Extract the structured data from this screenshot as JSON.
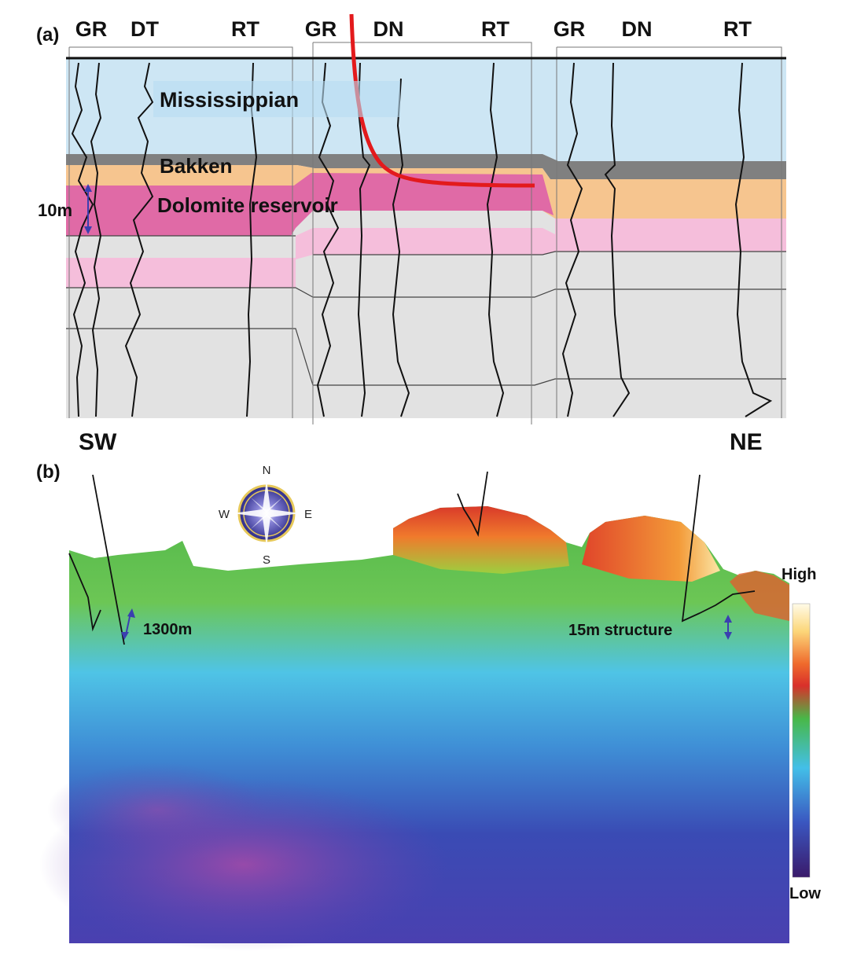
{
  "panel_a": {
    "label": "(a)",
    "tracks": [
      {
        "name": "GR"
      },
      {
        "name": "DT"
      },
      {
        "name": "RT"
      },
      {
        "name": "GR"
      },
      {
        "name": "DN"
      },
      {
        "name": "RT"
      },
      {
        "name": "GR"
      },
      {
        "name": "DN"
      },
      {
        "name": "RT"
      }
    ],
    "formations": {
      "mississippian": "Mississippian",
      "bakken": "Bakken",
      "dolomite": "Dolomite reservoir"
    },
    "thickness_label": "10m",
    "direction_left": "SW",
    "direction_right": "NE",
    "colors": {
      "mississippian": "#cde6f4",
      "bakken_shale": "#808080",
      "bakken_orange": "#f6c58f",
      "dolomite": "#e06aa6",
      "light_pink": "#f5bedb",
      "gray_unit": "#e2e2e2",
      "well_path": "#e31a1c"
    }
  },
  "panel_b": {
    "label": "(b)",
    "compass": {
      "n": "N",
      "s": "S",
      "e": "E",
      "w": "W"
    },
    "distance_label": "1300m",
    "structure_label": "15m structure",
    "colorbar": {
      "high": "High",
      "low": "Low"
    }
  }
}
